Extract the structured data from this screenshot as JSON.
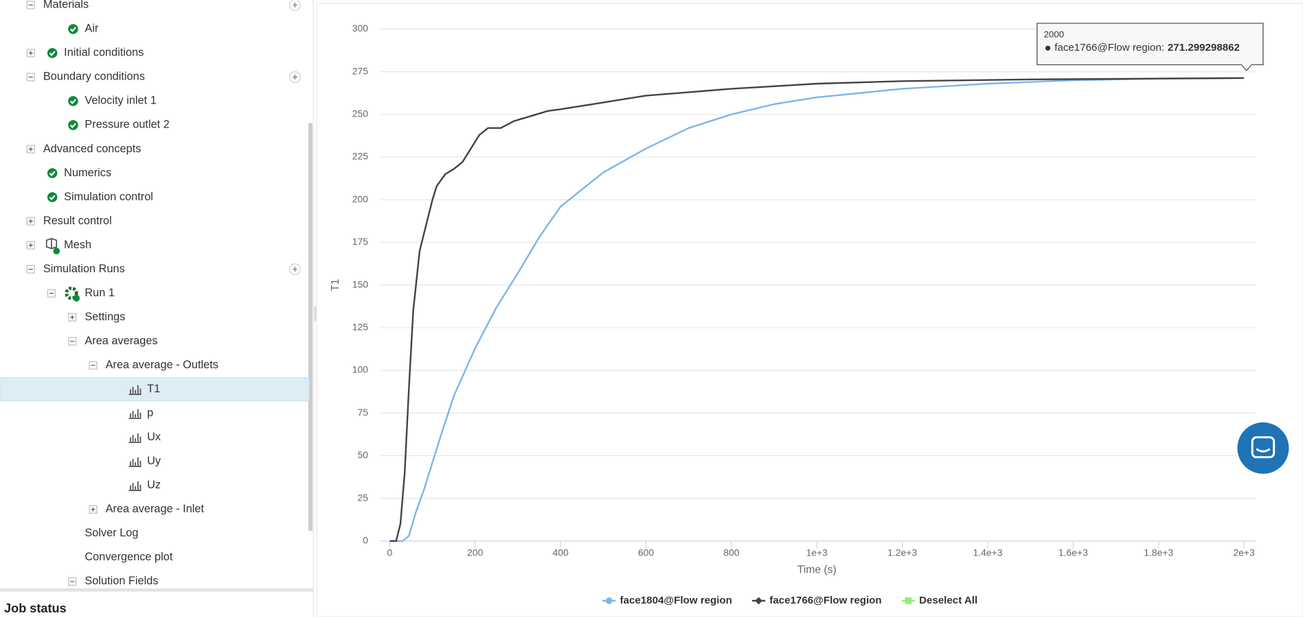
{
  "tree": [
    {
      "label": "Materials",
      "depth": 1,
      "expanded": true,
      "add": true
    },
    {
      "label": "Air",
      "depth": 2,
      "icon": "check"
    },
    {
      "label": "Initial conditions",
      "depth": 1,
      "icon": "check",
      "expanded": false
    },
    {
      "label": "Boundary conditions",
      "depth": 1,
      "expanded": true,
      "add": true
    },
    {
      "label": "Velocity inlet 1",
      "depth": 2,
      "icon": "check"
    },
    {
      "label": "Pressure outlet 2",
      "depth": 2,
      "icon": "check"
    },
    {
      "label": "Advanced concepts",
      "depth": 1,
      "expanded": false
    },
    {
      "label": "Numerics",
      "depth": 1,
      "icon": "check"
    },
    {
      "label": "Simulation control",
      "depth": 1,
      "icon": "check"
    },
    {
      "label": "Result control",
      "depth": 1,
      "expanded": false
    },
    {
      "label": "Mesh",
      "depth": 1,
      "icon": "mesh",
      "expanded": false
    },
    {
      "label": "Simulation Runs",
      "depth": 1,
      "expanded": true,
      "add": true
    },
    {
      "label": "Run 1",
      "depth": 2,
      "icon": "gear",
      "expanded": true
    },
    {
      "label": "Settings",
      "depth": 3,
      "expanded": false
    },
    {
      "label": "Area averages",
      "depth": 3,
      "expanded": true
    },
    {
      "label": "Area average - Outlets",
      "depth": 4,
      "expanded": true
    },
    {
      "label": "T1",
      "depth": 5,
      "icon": "chart",
      "selected": true
    },
    {
      "label": "p",
      "depth": 5,
      "icon": "chart"
    },
    {
      "label": "Ux",
      "depth": 5,
      "icon": "chart"
    },
    {
      "label": "Uy",
      "depth": 5,
      "icon": "chart"
    },
    {
      "label": "Uz",
      "depth": 5,
      "icon": "chart"
    },
    {
      "label": "Area average - Inlet",
      "depth": 4,
      "expanded": false
    },
    {
      "label": "Solver Log",
      "depth": 3
    },
    {
      "label": "Convergence plot",
      "depth": 3
    },
    {
      "label": "Solution Fields",
      "depth": 3,
      "expanded": true
    }
  ],
  "job_status": "Job status",
  "tooltip": {
    "x": "2000",
    "series": "face1766@Flow region:",
    "value": "271.299298862"
  },
  "legend_action": {
    "label": "Deselect All",
    "color": "#90ed7d"
  },
  "chart_data": {
    "type": "line",
    "xlabel": "Time (s)",
    "ylabel": "T1",
    "xlim": [
      0,
      2000
    ],
    "ylim": [
      0,
      300
    ],
    "xticks": [
      0,
      200,
      400,
      600,
      800,
      {
        "value": 1000,
        "label": "1e+3"
      },
      {
        "value": 1200,
        "label": "1.2e+3"
      },
      {
        "value": 1400,
        "label": "1.4e+3"
      },
      {
        "value": 1600,
        "label": "1.6e+3"
      },
      {
        "value": 1800,
        "label": "1.8e+3"
      },
      {
        "value": 2000,
        "label": "2e+3"
      }
    ],
    "yticks": [
      0,
      25,
      50,
      75,
      100,
      125,
      150,
      175,
      200,
      225,
      250,
      275,
      300
    ],
    "grid": true,
    "series": [
      {
        "name": "face1804@Flow region",
        "color": "#7cb5ec",
        "marker": "circle",
        "x": [
          0,
          30,
          45,
          60,
          80,
          100,
          120,
          150,
          200,
          250,
          300,
          350,
          400,
          500,
          600,
          700,
          800,
          900,
          1000,
          1200,
          1400,
          1600,
          1800,
          2000
        ],
        "values": [
          0,
          0,
          3,
          16,
          30,
          46,
          62,
          85,
          113,
          137,
          157,
          178,
          196,
          216,
          230,
          242,
          250,
          256,
          260,
          265,
          268,
          270,
          271,
          271.3
        ]
      },
      {
        "name": "face1766@Flow region",
        "color": "#434348",
        "marker": "diamond",
        "x": [
          0,
          15,
          25,
          35,
          45,
          55,
          70,
          90,
          100,
          110,
          130,
          150,
          170,
          190,
          210,
          230,
          260,
          290,
          330,
          370,
          400,
          500,
          600,
          800,
          1000,
          1200,
          1500,
          2000
        ],
        "values": [
          0,
          0,
          10,
          40,
          90,
          135,
          170,
          190,
          200,
          208,
          215,
          218,
          222,
          230,
          238,
          242,
          242,
          246,
          249,
          252,
          253,
          257,
          261,
          265,
          268,
          269.5,
          270.5,
          271.3
        ]
      }
    ]
  }
}
